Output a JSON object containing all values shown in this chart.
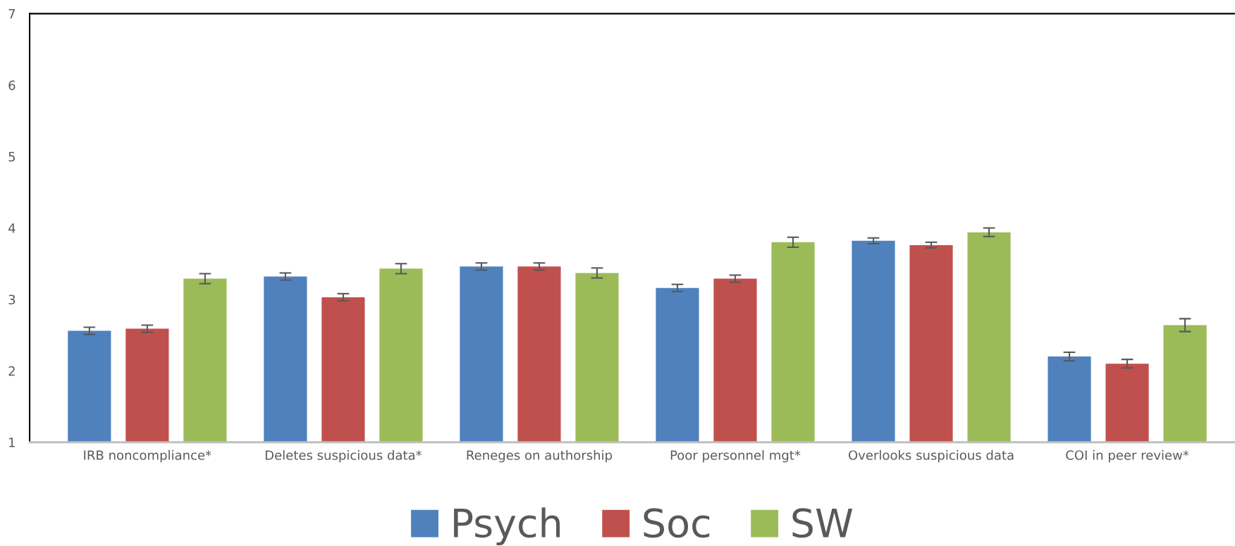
{
  "chart_data": {
    "type": "bar",
    "categories": [
      "IRB noncompliance*",
      "Deletes suspicious data*",
      "Reneges on authorship",
      "Poor personnel mgt*",
      "Overlooks suspicious data",
      "COI in peer review*"
    ],
    "series": [
      {
        "name": "Psych",
        "color": "#4f81bd",
        "values": [
          2.56,
          3.32,
          3.46,
          3.16,
          3.82,
          2.2
        ],
        "errors": [
          0.05,
          0.05,
          0.05,
          0.05,
          0.04,
          0.06
        ]
      },
      {
        "name": "Soc",
        "color": "#c0504d",
        "values": [
          2.59,
          3.03,
          3.46,
          3.29,
          3.76,
          2.1
        ],
        "errors": [
          0.05,
          0.05,
          0.05,
          0.05,
          0.04,
          0.06
        ]
      },
      {
        "name": "SW",
        "color": "#9bbb59",
        "values": [
          3.29,
          3.43,
          3.37,
          3.8,
          3.94,
          2.64
        ],
        "errors": [
          0.07,
          0.07,
          0.07,
          0.07,
          0.06,
          0.09
        ]
      }
    ],
    "ylim": [
      1,
      7
    ],
    "yticks": [
      1,
      2,
      3,
      4,
      5,
      6,
      7
    ],
    "grid": false,
    "legend": "bottom"
  }
}
